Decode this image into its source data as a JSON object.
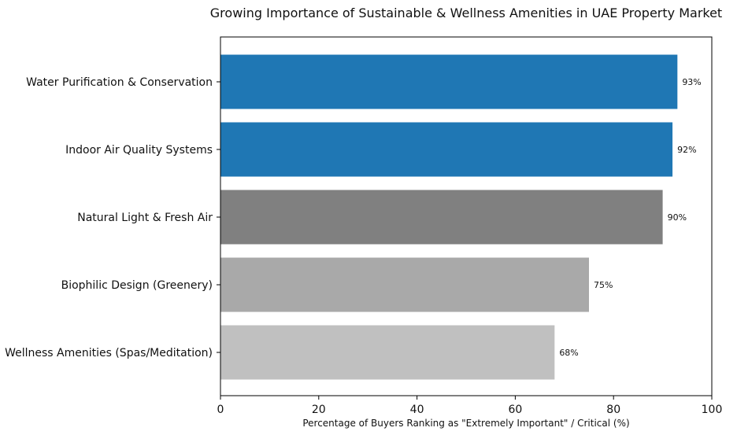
{
  "chart_data": {
    "type": "bar",
    "orientation": "horizontal",
    "title": "Growing Importance of Sustainable & Wellness Amenities in UAE Property Market",
    "xlabel": "Percentage of Buyers Ranking as \"Extremely Important\" / Critical (%)",
    "ylabel": "",
    "xlim": [
      0,
      100
    ],
    "x_ticks": [
      0,
      20,
      40,
      60,
      80,
      100
    ],
    "grid": false,
    "categories": [
      "Water Purification & Conservation",
      "Indoor Air Quality Systems",
      "Natural Light & Fresh Air",
      "Biophilic Design (Greenery)",
      "Wellness Amenities (Spas/Meditation)"
    ],
    "values": [
      93,
      92,
      90,
      75,
      68
    ],
    "data_labels": [
      "93%",
      "92%",
      "90%",
      "75%",
      "68%"
    ],
    "bar_colors": [
      "#1f77b4",
      "#1f77b4",
      "#808080",
      "#a9a9a9",
      "#c0c0c0"
    ]
  }
}
